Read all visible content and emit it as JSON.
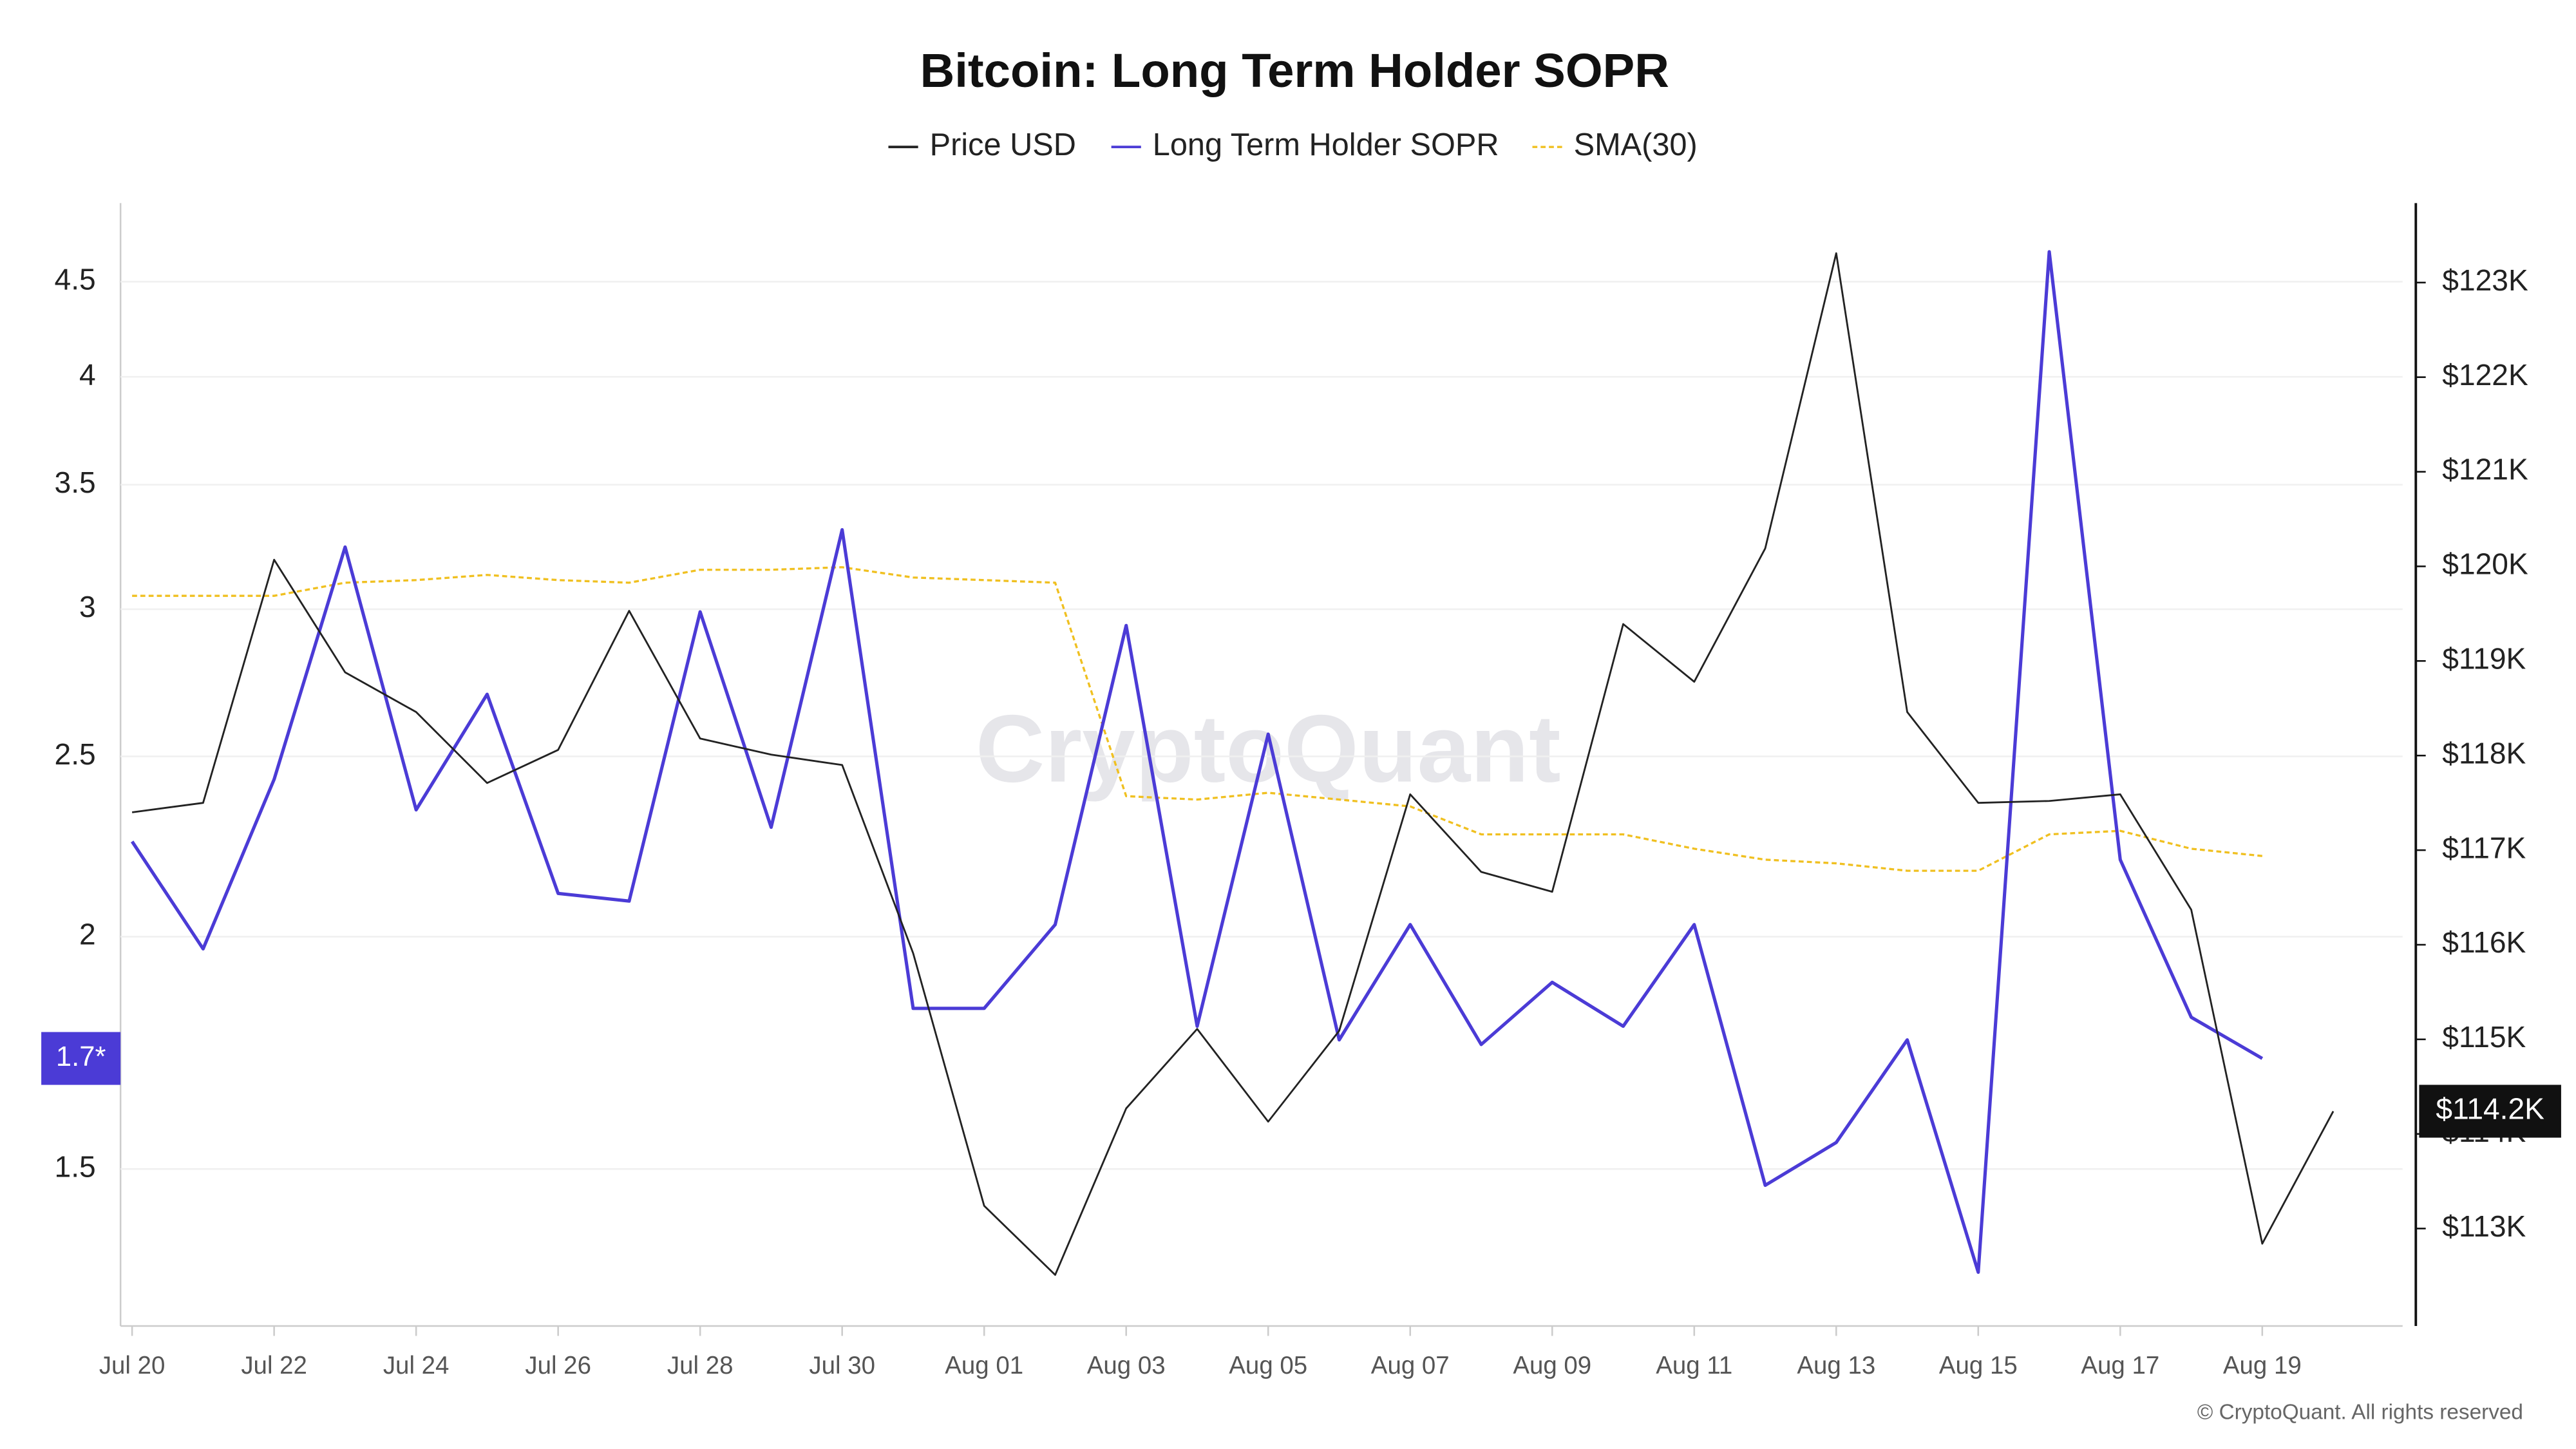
{
  "chart_data": {
    "type": "line",
    "title": "Bitcoin: Long Term Holder SOPR",
    "watermark": "CryptoQuant",
    "footer": "© CryptoQuant. All rights reserved",
    "categories": [
      "Jul 20",
      null,
      "Jul 22",
      null,
      "Jul 24",
      null,
      "Jul 26",
      null,
      "Jul 28",
      null,
      "Jul 30",
      null,
      "Aug 01",
      null,
      "Aug 03",
      null,
      "Aug 05",
      null,
      "Aug 07",
      null,
      "Aug 09",
      null,
      "Aug 11",
      null,
      "Aug 13",
      null,
      "Aug 15",
      null,
      "Aug 17",
      null,
      "Aug 19",
      null
    ],
    "series": [
      {
        "name": "Price USD",
        "color": "#222222",
        "axis": "y2",
        "values": [
          117400,
          117500,
          120070,
          118880,
          118460,
          117710,
          118060,
          119530,
          118180,
          118010,
          117900,
          115910,
          113240,
          112510,
          114270,
          115110,
          114130,
          115090,
          117590,
          116770,
          116560,
          119390,
          118780,
          120190,
          123310,
          118460,
          117500,
          117520,
          117590,
          116370,
          112840,
          114240
        ],
        "value_labels": [
          null,
          null,
          null,
          null,
          null,
          null,
          null,
          null,
          null,
          null,
          null,
          null,
          null,
          null,
          null,
          null,
          null,
          null,
          null,
          null,
          null,
          null,
          null,
          null,
          null,
          null,
          null,
          null,
          null,
          null,
          null,
          "$114.2K"
        ]
      },
      {
        "name": "Long Term Holder SOPR",
        "color": "#4b3bd6",
        "values": [
          2.25,
          1.97,
          2.43,
          3.24,
          2.34,
          2.7,
          2.11,
          2.09,
          2.99,
          2.29,
          3.31,
          1.83,
          1.83,
          2.03,
          2.94,
          1.79,
          2.57,
          1.76,
          2.03,
          1.75,
          1.89,
          1.79,
          2.03,
          1.47,
          1.55,
          1.76,
          1.32,
          4.67,
          2.2,
          1.81,
          1.72,
          null
        ],
        "value_labels": [
          null,
          null,
          null,
          null,
          null,
          null,
          null,
          null,
          null,
          null,
          null,
          null,
          null,
          null,
          null,
          null,
          null,
          null,
          null,
          null,
          null,
          null,
          null,
          null,
          null,
          null,
          null,
          null,
          null,
          null,
          "1.7*",
          null
        ]
      },
      {
        "name": "SMA(30)",
        "color": "#f0c020",
        "dashed": true,
        "values": [
          3.05,
          3.05,
          3.05,
          3.1,
          3.11,
          3.13,
          3.11,
          3.1,
          3.15,
          3.15,
          3.16,
          3.12,
          3.11,
          3.1,
          2.38,
          2.37,
          2.39,
          2.37,
          2.35,
          2.27,
          2.27,
          2.27,
          2.23,
          2.2,
          2.19,
          2.17,
          2.17,
          2.27,
          2.28,
          2.23,
          2.21,
          null
        ]
      }
    ],
    "ylim": [
      1.235,
      4.96
    ],
    "yscale": "log",
    "yticks": [
      1.5,
      2,
      2.5,
      3,
      3.5,
      4,
      4.5
    ],
    "y2lim": [
      111970,
      123840
    ],
    "y2ticks": [
      {
        "value": 113000,
        "label": "$113K"
      },
      {
        "value": 114000,
        "label": "$114K"
      },
      {
        "value": 115000,
        "label": "$115K"
      },
      {
        "value": 116000,
        "label": "$116K"
      },
      {
        "value": 117000,
        "label": "$117K"
      },
      {
        "value": 118000,
        "label": "$118K"
      },
      {
        "value": 119000,
        "label": "$119K"
      },
      {
        "value": 120000,
        "label": "$120K"
      },
      {
        "value": 121000,
        "label": "$121K"
      },
      {
        "value": 122000,
        "label": "$122K"
      },
      {
        "value": 123000,
        "label": "$123K"
      }
    ],
    "grid": true,
    "legend": "top"
  }
}
